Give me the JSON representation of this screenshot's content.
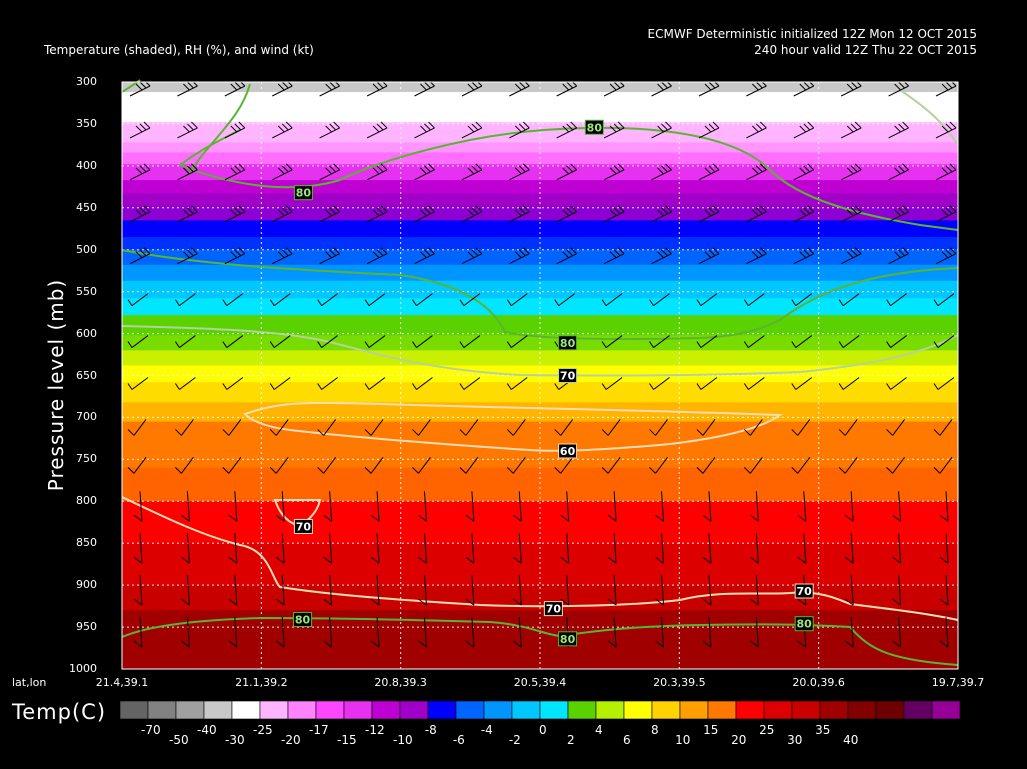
{
  "header": {
    "title_left": "Temperature (shaded), RH (%), and wind (kt)",
    "title_right_1": "ECMWF Deterministic initialized 12Z Mon 12 OCT 2015",
    "title_right_2": "240 hour valid 12Z Thu 22 OCT 2015"
  },
  "chart_data": {
    "type": "cross-section",
    "ylabel": "Pressure level (mb)",
    "xaxis_label": "lat,lon",
    "y_ticks": [
      300,
      350,
      400,
      450,
      500,
      550,
      600,
      650,
      700,
      750,
      800,
      850,
      900,
      950,
      1000
    ],
    "ylim": [
      1000,
      300
    ],
    "x_ticks": [
      "21.4,39.1",
      "21.1,39.2",
      "20.8,39.3",
      "20.5,39.4",
      "20.3,39.5",
      "20.0,39.6",
      "19.7,39.7"
    ],
    "temperature_bands": [
      {
        "p_top": 300,
        "p_bot": 312,
        "color": "#c8c8c8"
      },
      {
        "p_top": 312,
        "p_bot": 348,
        "color": "#ffffff"
      },
      {
        "p_top": 348,
        "p_bot": 372,
        "color": "#ffb4ff"
      },
      {
        "p_top": 372,
        "p_bot": 384,
        "color": "#ff96ff"
      },
      {
        "p_top": 384,
        "p_bot": 398,
        "color": "#ff6eff"
      },
      {
        "p_top": 398,
        "p_bot": 417,
        "color": "#e632f0"
      },
      {
        "p_top": 417,
        "p_bot": 433,
        "color": "#be00d2"
      },
      {
        "p_top": 433,
        "p_bot": 448,
        "color": "#a000c8"
      },
      {
        "p_top": 448,
        "p_bot": 465,
        "color": "#8c00d2"
      },
      {
        "p_top": 465,
        "p_bot": 485,
        "color": "#0000ff"
      },
      {
        "p_top": 485,
        "p_bot": 500,
        "color": "#0032ff"
      },
      {
        "p_top": 500,
        "p_bot": 518,
        "color": "#0064ff"
      },
      {
        "p_top": 518,
        "p_bot": 537,
        "color": "#0096ff"
      },
      {
        "p_top": 537,
        "p_bot": 558,
        "color": "#00c8ff"
      },
      {
        "p_top": 558,
        "p_bot": 578,
        "color": "#00e6ff"
      },
      {
        "p_top": 578,
        "p_bot": 602,
        "color": "#5ad200"
      },
      {
        "p_top": 602,
        "p_bot": 620,
        "color": "#78dc00"
      },
      {
        "p_top": 620,
        "p_bot": 638,
        "color": "#c8f000"
      },
      {
        "p_top": 638,
        "p_bot": 658,
        "color": "#ffff00"
      },
      {
        "p_top": 658,
        "p_bot": 682,
        "color": "#ffdc00"
      },
      {
        "p_top": 682,
        "p_bot": 705,
        "color": "#ffb400"
      },
      {
        "p_top": 705,
        "p_bot": 760,
        "color": "#ff7800"
      },
      {
        "p_top": 760,
        "p_bot": 800,
        "color": "#ff6400"
      },
      {
        "p_top": 800,
        "p_bot": 850,
        "color": "#ff0000"
      },
      {
        "p_top": 850,
        "p_bot": 900,
        "color": "#dc0000"
      },
      {
        "p_top": 900,
        "p_bot": 930,
        "color": "#c80000"
      },
      {
        "p_top": 930,
        "p_bot": 1000,
        "color": "#a00000"
      }
    ],
    "contour_labels": [
      {
        "text": "80",
        "x_frac": 0.565,
        "p": 354,
        "color": "#5ab432",
        "text_color": "#9be67d"
      },
      {
        "text": "80",
        "x_frac": 0.217,
        "p": 432,
        "color": "#5ab432",
        "text_color": "#9be67d"
      },
      {
        "text": "80",
        "x_frac": 0.533,
        "p": 611,
        "color": "#5ab432",
        "text_color": "#9be67d"
      },
      {
        "text": "70",
        "x_frac": 0.533,
        "p": 650,
        "color": "#b4d2a0",
        "text_color": "#ffffff"
      },
      {
        "text": "60",
        "x_frac": 0.533,
        "p": 740,
        "color": "#ffdcb4",
        "text_color": "#ffffff"
      },
      {
        "text": "70",
        "x_frac": 0.217,
        "p": 830,
        "color": "#ffdcb4",
        "text_color": "#ffffff"
      },
      {
        "text": "70",
        "x_frac": 0.516,
        "p": 928,
        "color": "#ffdcb4",
        "text_color": "#ffffff"
      },
      {
        "text": "70",
        "x_frac": 0.816,
        "p": 907,
        "color": "#ffdcb4",
        "text_color": "#ffffff"
      },
      {
        "text": "80",
        "x_frac": 0.216,
        "p": 941,
        "color": "#5ab432",
        "text_color": "#9be67d"
      },
      {
        "text": "80",
        "x_frac": 0.533,
        "p": 964,
        "color": "#5ab432",
        "text_color": "#9be67d"
      },
      {
        "text": "80",
        "x_frac": 0.816,
        "p": 946,
        "color": "#5ab432",
        "text_color": "#9be67d"
      }
    ],
    "colorbar": {
      "label": "Temp(C)",
      "colors": [
        "#646464",
        "#828282",
        "#a0a0a0",
        "#c8c8c8",
        "#ffffff",
        "#ffb4ff",
        "#ff82ff",
        "#ff46ff",
        "#e632f0",
        "#be00d2",
        "#a000c8",
        "#0000ff",
        "#0064ff",
        "#0096ff",
        "#00c8ff",
        "#00e6ff",
        "#5ad200",
        "#b4f000",
        "#ffff00",
        "#ffd200",
        "#ffa000",
        "#ff7800",
        "#ff0000",
        "#dc0000",
        "#c80000",
        "#a00000",
        "#820000",
        "#6e0000",
        "#640064",
        "#960096"
      ],
      "tick_labels_upper": [
        "-70",
        "-40",
        "-25",
        "-17",
        "-12",
        "-8",
        "-4",
        "0",
        "4",
        "8",
        "15",
        "25",
        "35"
      ],
      "tick_labels_lower": [
        "-50",
        "-30",
        "-20",
        "-15",
        "-10",
        "-6",
        "-2",
        "2",
        "6",
        "10",
        "20",
        "30",
        "40"
      ]
    }
  }
}
